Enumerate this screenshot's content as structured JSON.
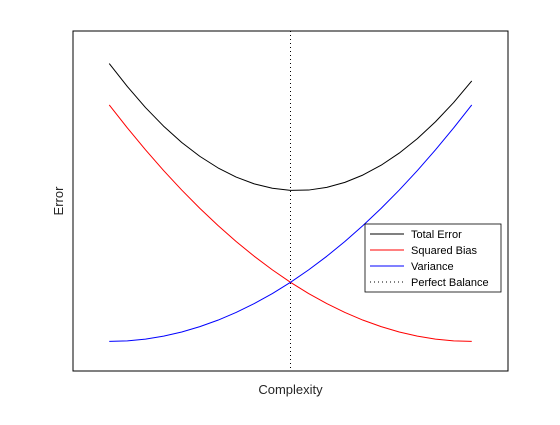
{
  "chart_data": {
    "type": "line",
    "title": "",
    "xlabel": "Complexity",
    "ylabel": "Error",
    "x": [
      0,
      0.05,
      0.1,
      0.15,
      0.2,
      0.25,
      0.3,
      0.35,
      0.4,
      0.45,
      0.5,
      0.55,
      0.6,
      0.65,
      0.7,
      0.75,
      0.8,
      0.85,
      0.9,
      0.95,
      1
    ],
    "xlim": [
      -0.1,
      1.1
    ],
    "ylim": [
      -0.1,
      1.05
    ],
    "grid": false,
    "show_tick_labels": false,
    "legend_position": "lower-right",
    "series": [
      {
        "name": "Total Error",
        "color": "#000000",
        "style": "solid",
        "values": [
          0.94,
          0.862,
          0.791,
          0.728,
          0.673,
          0.626,
          0.587,
          0.556,
          0.533,
          0.518,
          0.511,
          0.512,
          0.521,
          0.538,
          0.563,
          0.596,
          0.637,
          0.686,
          0.743,
          0.808,
          0.881
        ]
      },
      {
        "name": "Squared Bias",
        "color": "#ff0000",
        "style": "solid",
        "values": [
          0.8,
          0.722,
          0.648,
          0.578,
          0.512,
          0.45,
          0.392,
          0.338,
          0.288,
          0.242,
          0.2,
          0.162,
          0.128,
          0.098,
          0.072,
          0.05,
          0.032,
          0.018,
          0.008,
          0.002,
          0.0
        ]
      },
      {
        "name": "Variance",
        "color": "#0000ff",
        "style": "solid",
        "values": [
          0.0,
          0.002,
          0.008,
          0.018,
          0.032,
          0.05,
          0.072,
          0.098,
          0.128,
          0.162,
          0.2,
          0.242,
          0.288,
          0.338,
          0.392,
          0.45,
          0.512,
          0.578,
          0.648,
          0.722,
          0.8
        ]
      }
    ],
    "reference_line": {
      "name": "Perfect Balance",
      "x": 0.5,
      "color": "#000000",
      "style": "dotted"
    }
  }
}
